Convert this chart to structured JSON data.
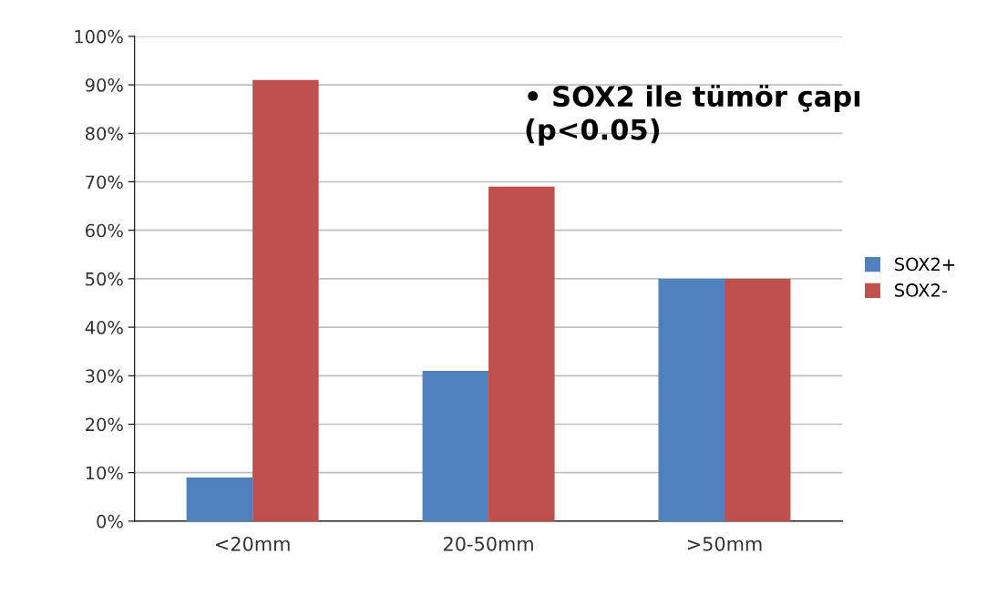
{
  "chart_data": {
    "type": "bar",
    "categories": [
      "<20mm",
      "20-50mm",
      ">50mm"
    ],
    "series": [
      {
        "name": "SOX2+",
        "color": "#4f81bd",
        "values": [
          9,
          31,
          50
        ]
      },
      {
        "name": "SOX2-",
        "color": "#c0504d",
        "values": [
          91,
          69,
          50
        ]
      }
    ],
    "ylim": [
      0,
      100
    ],
    "yticks": [
      {
        "value": 0,
        "label": "0%"
      },
      {
        "value": 10,
        "label": "10%"
      },
      {
        "value": 20,
        "label": "20%"
      },
      {
        "value": 30,
        "label": "30%"
      },
      {
        "value": 40,
        "label": "40%"
      },
      {
        "value": 50,
        "label": "50%"
      },
      {
        "value": 60,
        "label": "60%"
      },
      {
        "value": 70,
        "label": "70%"
      },
      {
        "value": 80,
        "label": "80%"
      },
      {
        "value": 90,
        "label": "90%"
      },
      {
        "value": 100,
        "label": "100%"
      }
    ],
    "grid": "y",
    "legend": "right",
    "annotations": [
      "• SOX2 ile tümör çapı\n(p<0.05)"
    ]
  }
}
